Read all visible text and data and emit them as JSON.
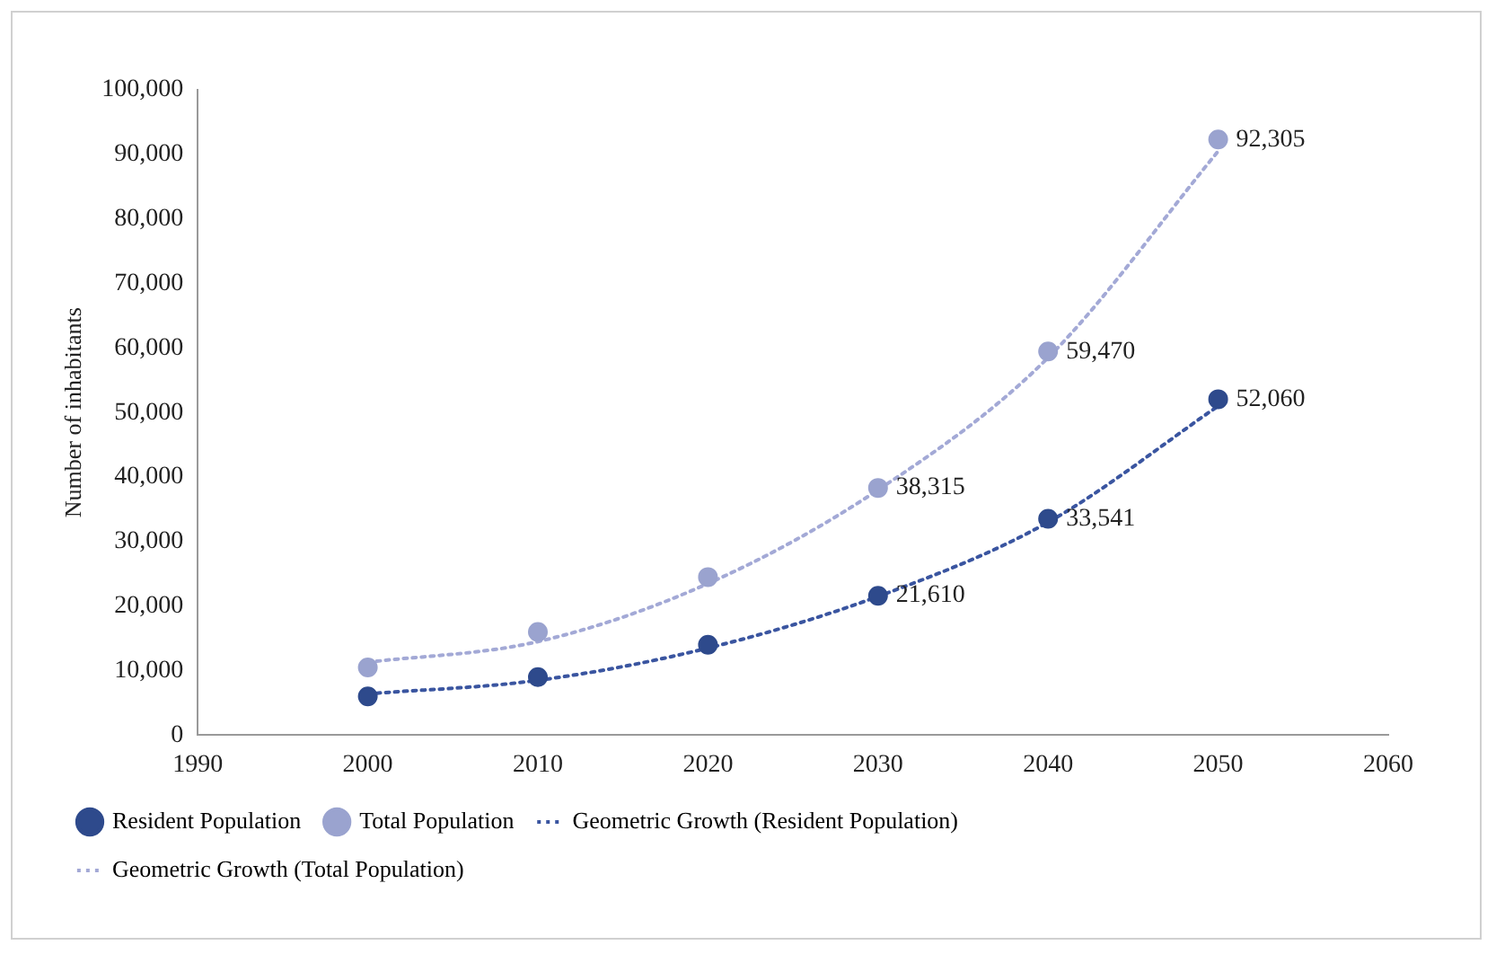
{
  "chart_data": {
    "type": "scatter",
    "ylabel": "Number of inhabitants",
    "x": [
      2000,
      2010,
      2020,
      2030,
      2040,
      2050
    ],
    "xlim": [
      1990,
      2060
    ],
    "xticks": [
      1990,
      2000,
      2010,
      2020,
      2030,
      2040,
      2050,
      2060
    ],
    "ylim": [
      0,
      100000
    ],
    "yticks": [
      0,
      {
        "value": 10000,
        "label": "10,000"
      },
      {
        "value": 20000,
        "label": "20,000"
      },
      {
        "value": 30000,
        "label": "30,000"
      },
      {
        "value": 40000,
        "label": "40,000"
      },
      {
        "value": 50000,
        "label": "50,000"
      },
      {
        "value": 60000,
        "label": "60,000"
      },
      {
        "value": 70000,
        "label": "70,000"
      },
      {
        "value": 80000,
        "label": "80,000"
      },
      {
        "value": 90000,
        "label": "90,000"
      },
      {
        "value": 100000,
        "label": "100,000"
      }
    ],
    "grid": false,
    "legend": "bottom",
    "marker": "circle",
    "series": [
      {
        "name": "Resident Population",
        "type": "scatter",
        "color": "#2e4a8c",
        "values": [
          6000,
          9000,
          14000,
          21610,
          33541,
          52060
        ],
        "value_labels": [
          null,
          null,
          null,
          "21,610",
          "33,541",
          "52,060"
        ]
      },
      {
        "name": "Total Population",
        "type": "scatter",
        "color": "#9aa3cf",
        "values": [
          10500,
          16000,
          24500,
          38315,
          59470,
          92305
        ],
        "value_labels": [
          null,
          null,
          null,
          "38,315",
          "59,470",
          "92,305"
        ]
      },
      {
        "name": "Geometric Growth (Resident Population)",
        "type": "line",
        "line_style": "dotted",
        "marker": "none",
        "color": "#3a55a0",
        "x": [
          2000,
          2010,
          2020,
          2030,
          2040,
          2050
        ],
        "values": [
          6400,
          8500,
          13500,
          21500,
          33000,
          51000
        ]
      },
      {
        "name": "Geometric Growth (Total Population)",
        "type": "line",
        "line_style": "dotted",
        "marker": "none",
        "color": "#a3a9d6",
        "x": [
          2000,
          2010,
          2020,
          2030,
          2040,
          2050
        ],
        "values": [
          11300,
          14500,
          23500,
          38000,
          58500,
          90500
        ]
      }
    ]
  }
}
